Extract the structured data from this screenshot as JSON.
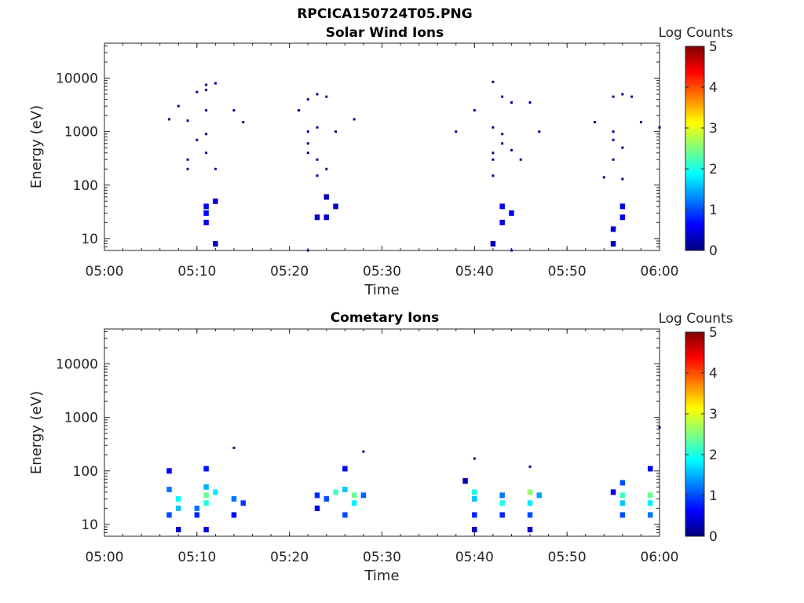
{
  "figure": {
    "filename": "RPCICA150724T05.PNG"
  },
  "colormap": {
    "name": "jet",
    "stops": [
      "#00007f",
      "#0000ff",
      "#007fff",
      "#00ffff",
      "#7fff7f",
      "#ffff00",
      "#ff7f00",
      "#ff0000",
      "#7f0000"
    ]
  },
  "chart_data": [
    {
      "type": "heatmap",
      "title": "Solar Wind Ions",
      "xlabel": "Time",
      "ylabel": "Energy (eV)",
      "y_scale": "log",
      "xlim": [
        "05:00",
        "06:00"
      ],
      "ylim": [
        6,
        45000
      ],
      "x_ticks": [
        "05:00",
        "05:10",
        "05:20",
        "05:30",
        "05:40",
        "05:50",
        "06:00"
      ],
      "y_ticks": [
        10,
        100,
        1000,
        10000
      ],
      "y_tick_labels": [
        "10",
        "100",
        "1000",
        "10000"
      ],
      "colorbar": {
        "label": "Log Counts",
        "range": [
          0,
          5
        ],
        "ticks": [
          "0",
          "1",
          "2",
          "3",
          "4",
          "5"
        ]
      },
      "grid": false,
      "points": [
        {
          "t": "05:07",
          "e": 1700,
          "v": 0.1
        },
        {
          "t": "05:08",
          "e": 3000,
          "v": 0.1
        },
        {
          "t": "05:09",
          "e": 1600,
          "v": 0.1
        },
        {
          "t": "05:10",
          "e": 5500,
          "v": 0.1
        },
        {
          "t": "05:11",
          "e": 7500,
          "v": 0.1
        },
        {
          "t": "05:11",
          "e": 6000,
          "v": 0.1
        },
        {
          "t": "05:12",
          "e": 8000,
          "v": 0.1
        },
        {
          "t": "05:11",
          "e": 2500,
          "v": 0.1
        },
        {
          "t": "05:11",
          "e": 900,
          "v": 0.1
        },
        {
          "t": "05:10",
          "e": 700,
          "v": 0.1
        },
        {
          "t": "05:09",
          "e": 300,
          "v": 0.1
        },
        {
          "t": "05:09",
          "e": 200,
          "v": 0.1
        },
        {
          "t": "05:11",
          "e": 400,
          "v": 0.1
        },
        {
          "t": "05:12",
          "e": 200,
          "v": 0.1
        },
        {
          "t": "05:14",
          "e": 2500,
          "v": 0.1
        },
        {
          "t": "05:15",
          "e": 1500,
          "v": 0.1
        },
        {
          "t": "05:11",
          "e": 40,
          "v": 0.6
        },
        {
          "t": "05:11",
          "e": 30,
          "v": 0.6
        },
        {
          "t": "05:11",
          "e": 20,
          "v": 0.5
        },
        {
          "t": "05:12",
          "e": 50,
          "v": 0.4
        },
        {
          "t": "05:12",
          "e": 8,
          "v": 0.3
        },
        {
          "t": "05:21",
          "e": 2500,
          "v": 0.1
        },
        {
          "t": "05:22",
          "e": 4000,
          "v": 0.1
        },
        {
          "t": "05:23",
          "e": 5000,
          "v": 0.1
        },
        {
          "t": "05:24",
          "e": 4500,
          "v": 0.1
        },
        {
          "t": "05:22",
          "e": 1000,
          "v": 0.1
        },
        {
          "t": "05:23",
          "e": 1200,
          "v": 0.1
        },
        {
          "t": "05:22",
          "e": 600,
          "v": 0.1
        },
        {
          "t": "05:22",
          "e": 400,
          "v": 0.1
        },
        {
          "t": "05:23",
          "e": 300,
          "v": 0.1
        },
        {
          "t": "05:23",
          "e": 150,
          "v": 0.1
        },
        {
          "t": "05:24",
          "e": 200,
          "v": 0.1
        },
        {
          "t": "05:25",
          "e": 1000,
          "v": 0.1
        },
        {
          "t": "05:27",
          "e": 1700,
          "v": 0.1
        },
        {
          "t": "05:24",
          "e": 60,
          "v": 0.3
        },
        {
          "t": "05:25",
          "e": 40,
          "v": 0.4
        },
        {
          "t": "05:24",
          "e": 25,
          "v": 0.4
        },
        {
          "t": "05:23",
          "e": 25,
          "v": 0.3
        },
        {
          "t": "05:22",
          "e": 6,
          "v": 0.2
        },
        {
          "t": "05:38",
          "e": 1000,
          "v": 0.1
        },
        {
          "t": "05:40",
          "e": 2500,
          "v": 0.1
        },
        {
          "t": "05:42",
          "e": 8500,
          "v": 0.1
        },
        {
          "t": "05:43",
          "e": 4500,
          "v": 0.1
        },
        {
          "t": "05:44",
          "e": 3500,
          "v": 0.1
        },
        {
          "t": "05:46",
          "e": 3500,
          "v": 0.1
        },
        {
          "t": "05:47",
          "e": 1000,
          "v": 0.1
        },
        {
          "t": "05:42",
          "e": 1200,
          "v": 0.1
        },
        {
          "t": "05:43",
          "e": 900,
          "v": 0.1
        },
        {
          "t": "05:43",
          "e": 600,
          "v": 0.1
        },
        {
          "t": "05:42",
          "e": 400,
          "v": 0.1
        },
        {
          "t": "05:42",
          "e": 300,
          "v": 0.1
        },
        {
          "t": "05:44",
          "e": 450,
          "v": 0.1
        },
        {
          "t": "05:45",
          "e": 300,
          "v": 0.1
        },
        {
          "t": "05:42",
          "e": 150,
          "v": 0.1
        },
        {
          "t": "05:43",
          "e": 40,
          "v": 0.5
        },
        {
          "t": "05:44",
          "e": 30,
          "v": 0.6
        },
        {
          "t": "05:43",
          "e": 20,
          "v": 0.5
        },
        {
          "t": "05:42",
          "e": 8,
          "v": 0.3
        },
        {
          "t": "05:44",
          "e": 6,
          "v": 0.2
        },
        {
          "t": "05:53",
          "e": 1500,
          "v": 0.1
        },
        {
          "t": "05:55",
          "e": 4500,
          "v": 0.1
        },
        {
          "t": "05:56",
          "e": 5000,
          "v": 0.1
        },
        {
          "t": "05:57",
          "e": 4500,
          "v": 0.1
        },
        {
          "t": "05:58",
          "e": 1500,
          "v": 0.1
        },
        {
          "t": "06:00",
          "e": 1200,
          "v": 0.1
        },
        {
          "t": "05:55",
          "e": 1000,
          "v": 0.1
        },
        {
          "t": "05:55",
          "e": 700,
          "v": 0.1
        },
        {
          "t": "05:56",
          "e": 500,
          "v": 0.1
        },
        {
          "t": "05:55",
          "e": 300,
          "v": 0.1
        },
        {
          "t": "05:54",
          "e": 140,
          "v": 0.1
        },
        {
          "t": "05:56",
          "e": 130,
          "v": 0.1
        },
        {
          "t": "05:56",
          "e": 40,
          "v": 0.5
        },
        {
          "t": "05:56",
          "e": 25,
          "v": 0.6
        },
        {
          "t": "05:55",
          "e": 15,
          "v": 0.4
        },
        {
          "t": "05:55",
          "e": 8,
          "v": 0.3
        }
      ]
    },
    {
      "type": "heatmap",
      "title": "Cometary Ions",
      "xlabel": "Time",
      "ylabel": "Energy (eV)",
      "y_scale": "log",
      "xlim": [
        "05:00",
        "06:00"
      ],
      "ylim": [
        6,
        45000
      ],
      "x_ticks": [
        "05:00",
        "05:10",
        "05:20",
        "05:30",
        "05:40",
        "05:50",
        "06:00"
      ],
      "y_ticks": [
        10,
        100,
        1000,
        10000
      ],
      "y_tick_labels": [
        "10",
        "100",
        "1000",
        "10000"
      ],
      "colorbar": {
        "label": "Log Counts",
        "range": [
          0,
          5
        ],
        "ticks": [
          "0",
          "1",
          "2",
          "3",
          "4",
          "5"
        ]
      },
      "grid": false,
      "points": [
        {
          "t": "05:07",
          "e": 100,
          "v": 0.6
        },
        {
          "t": "05:07",
          "e": 45,
          "v": 1.2
        },
        {
          "t": "05:08",
          "e": 30,
          "v": 1.9
        },
        {
          "t": "05:08",
          "e": 20,
          "v": 1.6
        },
        {
          "t": "05:07",
          "e": 15,
          "v": 1.0
        },
        {
          "t": "05:08",
          "e": 8,
          "v": 0.4
        },
        {
          "t": "05:11",
          "e": 110,
          "v": 0.7
        },
        {
          "t": "05:11",
          "e": 50,
          "v": 1.5
        },
        {
          "t": "05:11",
          "e": 35,
          "v": 2.4
        },
        {
          "t": "05:11",
          "e": 25,
          "v": 2.0
        },
        {
          "t": "05:10",
          "e": 20,
          "v": 1.2
        },
        {
          "t": "05:10",
          "e": 15,
          "v": 0.8
        },
        {
          "t": "05:12",
          "e": 40,
          "v": 1.8
        },
        {
          "t": "05:11",
          "e": 8,
          "v": 0.5
        },
        {
          "t": "05:14",
          "e": 30,
          "v": 1.2
        },
        {
          "t": "05:15",
          "e": 25,
          "v": 0.9
        },
        {
          "t": "05:14",
          "e": 15,
          "v": 0.6
        },
        {
          "t": "05:14",
          "e": 270,
          "v": 0.1
        },
        {
          "t": "05:23",
          "e": 35,
          "v": 0.8
        },
        {
          "t": "05:23",
          "e": 20,
          "v": 0.5
        },
        {
          "t": "05:24",
          "e": 30,
          "v": 1.0
        },
        {
          "t": "05:25",
          "e": 40,
          "v": 2.2
        },
        {
          "t": "05:26",
          "e": 110,
          "v": 0.6
        },
        {
          "t": "05:26",
          "e": 45,
          "v": 1.6
        },
        {
          "t": "05:27",
          "e": 35,
          "v": 2.4
        },
        {
          "t": "05:27",
          "e": 25,
          "v": 1.8
        },
        {
          "t": "05:26",
          "e": 15,
          "v": 1.0
        },
        {
          "t": "05:28",
          "e": 35,
          "v": 1.1
        },
        {
          "t": "05:28",
          "e": 230,
          "v": 0.1
        },
        {
          "t": "05:40",
          "e": 170,
          "v": 0.1
        },
        {
          "t": "05:39",
          "e": 65,
          "v": 0.3
        },
        {
          "t": "05:40",
          "e": 40,
          "v": 2.0
        },
        {
          "t": "05:40",
          "e": 30,
          "v": 1.6
        },
        {
          "t": "05:40",
          "e": 15,
          "v": 0.8
        },
        {
          "t": "05:40",
          "e": 8,
          "v": 0.4
        },
        {
          "t": "05:43",
          "e": 35,
          "v": 1.2
        },
        {
          "t": "05:43",
          "e": 25,
          "v": 2.0
        },
        {
          "t": "05:43",
          "e": 15,
          "v": 0.8
        },
        {
          "t": "05:46",
          "e": 120,
          "v": 0.1
        },
        {
          "t": "05:46",
          "e": 40,
          "v": 2.6
        },
        {
          "t": "05:46",
          "e": 25,
          "v": 1.8
        },
        {
          "t": "05:46",
          "e": 15,
          "v": 1.0
        },
        {
          "t": "05:47",
          "e": 35,
          "v": 1.4
        },
        {
          "t": "05:46",
          "e": 8,
          "v": 0.4
        },
        {
          "t": "05:55",
          "e": 40,
          "v": 0.6
        },
        {
          "t": "05:56",
          "e": 60,
          "v": 1.0
        },
        {
          "t": "05:56",
          "e": 35,
          "v": 2.2
        },
        {
          "t": "05:56",
          "e": 25,
          "v": 1.6
        },
        {
          "t": "05:56",
          "e": 15,
          "v": 1.0
        },
        {
          "t": "05:59",
          "e": 110,
          "v": 0.6
        },
        {
          "t": "05:59",
          "e": 35,
          "v": 2.4
        },
        {
          "t": "05:59",
          "e": 25,
          "v": 1.8
        },
        {
          "t": "05:59",
          "e": 15,
          "v": 1.2
        },
        {
          "t": "06:00",
          "e": 650,
          "v": 0.1
        }
      ]
    }
  ]
}
